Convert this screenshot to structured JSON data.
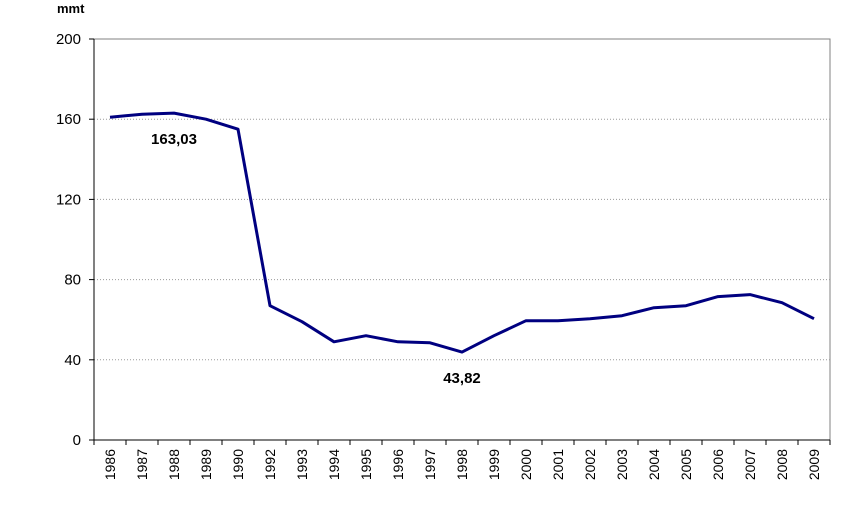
{
  "chart_data": {
    "type": "line",
    "ylabel": "mmt",
    "ylim": [
      0,
      200
    ],
    "yticks": [
      "0",
      "40",
      "80",
      "120",
      "160",
      "200"
    ],
    "grid": true,
    "categories": [
      "1986",
      "1987",
      "1988",
      "1989",
      "1990",
      "1992",
      "1993",
      "1994",
      "1995",
      "1996",
      "1997",
      "1998",
      "1999",
      "2000",
      "2001",
      "2002",
      "2003",
      "2004",
      "2005",
      "2006",
      "2007",
      "2008",
      "2009"
    ],
    "series": [
      {
        "name": "mmt",
        "color": "#000080",
        "values": [
          161,
          162.5,
          163.03,
          160,
          155,
          67,
          59,
          49,
          52,
          49,
          48.5,
          43.82,
          52,
          59.5,
          59.5,
          60.5,
          62,
          66,
          67,
          71.5,
          72.5,
          68.5,
          60.5
        ]
      }
    ],
    "annotations": [
      {
        "text": "163,03",
        "category": "1988",
        "value": 163.03
      },
      {
        "text": "43,82",
        "category": "1998",
        "value": 43.82
      }
    ]
  }
}
